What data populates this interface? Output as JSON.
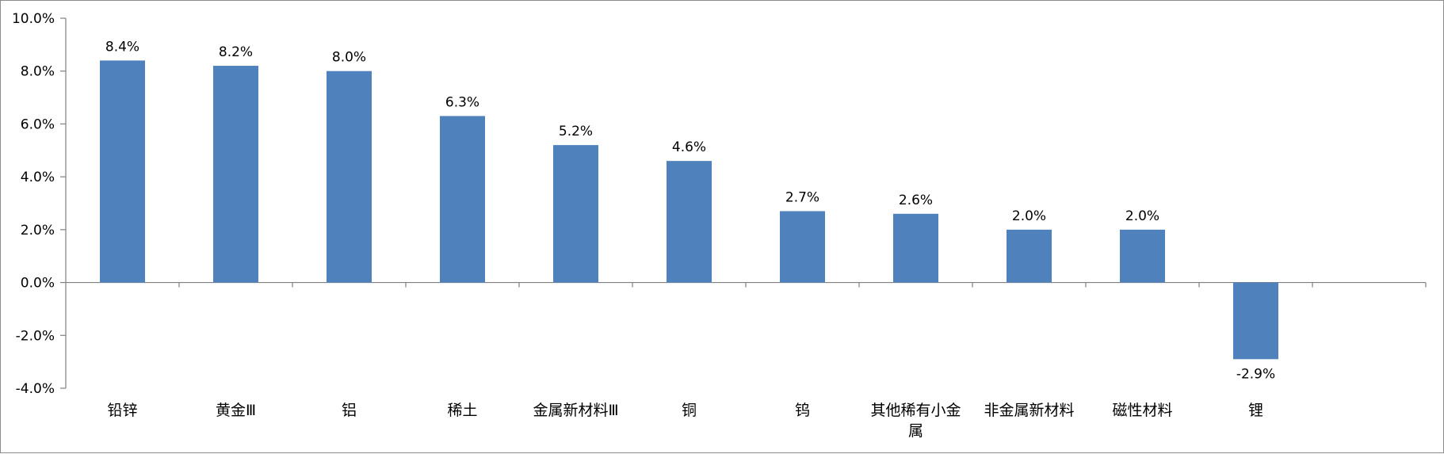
{
  "chart_data": {
    "type": "bar",
    "title": "",
    "xlabel": "",
    "ylabel": "",
    "categories": [
      "铅锌",
      "黄金Ⅲ",
      "铝",
      "稀土",
      "金属新材料Ⅲ",
      "铜",
      "钨",
      "其他稀有小金属",
      "非金属新材料",
      "磁性材料",
      "锂"
    ],
    "values": [
      8.4,
      8.2,
      8.0,
      6.3,
      5.2,
      4.6,
      2.7,
      2.6,
      2.0,
      2.0,
      -2.9
    ],
    "value_labels": [
      "8.4%",
      "8.2%",
      "8.0%",
      "6.3%",
      "5.2%",
      "4.6%",
      "2.7%",
      "2.6%",
      "2.0%",
      "2.0%",
      "-2.9%"
    ],
    "y_ticks": [
      10.0,
      8.0,
      6.0,
      4.0,
      2.0,
      0.0,
      -2.0,
      -4.0
    ],
    "y_tick_labels": [
      "10.0%",
      "8.0%",
      "6.0%",
      "4.0%",
      "2.0%",
      "0.0%",
      "-2.0%",
      "-4.0%"
    ],
    "ylim": [
      -4.0,
      10.0
    ],
    "grid": false,
    "legend": "none",
    "bar_color": "#4f81bd",
    "axis_color": "#808080"
  }
}
